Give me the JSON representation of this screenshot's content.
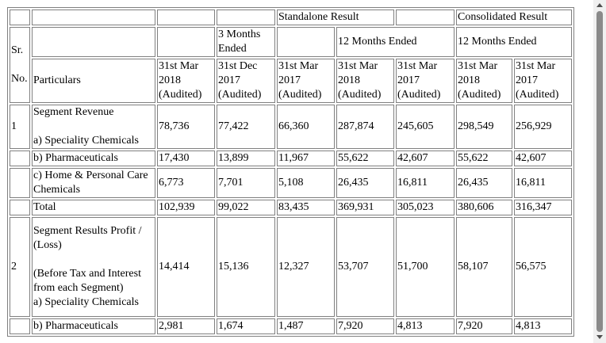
{
  "header": {
    "standalone_result": "Standalone Result",
    "consolidated_result": "Consolidated Result",
    "three_months_ended": "3 Months Ended",
    "twelve_months_ended": "12 Months Ended",
    "sr": "Sr.",
    "no": "No.",
    "particulars": "Particulars",
    "columns": [
      {
        "date": "31st Mar 2018",
        "status": "(Audited)"
      },
      {
        "date": "31st Dec 2017",
        "status": "(Audited)"
      },
      {
        "date": "31st Mar 2017",
        "status": "(Audited)"
      },
      {
        "date": "31st Mar 2018",
        "status": "(Audited)"
      },
      {
        "date": "31st Mar 2017",
        "status": "(Audited)"
      },
      {
        "date": "31st Mar 2018",
        "status": "(Audited)"
      },
      {
        "date": "31st Mar 2017",
        "status": "(Audited)"
      }
    ]
  },
  "rows": [
    {
      "sr": "1",
      "title": "Segment Revenue",
      "label": "a) Speciality Chemicals",
      "values": [
        "78,736",
        "77,422",
        "66,360",
        "287,874",
        "245,605",
        "298,549",
        "256,929"
      ]
    },
    {
      "sr": "",
      "label": "b) Pharmaceuticals",
      "values": [
        "17,430",
        "13,899",
        "11,967",
        "55,622",
        "42,607",
        "55,622",
        "42,607"
      ]
    },
    {
      "sr": "",
      "label": "c) Home & Personal Care Chemicals",
      "values": [
        "6,773",
        "7,701",
        "5,108",
        "26,435",
        "16,811",
        "26,435",
        "16,811"
      ]
    },
    {
      "sr": "",
      "label": "Total",
      "values": [
        "102,939",
        "99,022",
        "83,435",
        "369,931",
        "305,023",
        "380,606",
        "316,347"
      ]
    },
    {
      "sr": "2",
      "title": "Segment Results Profit / (Loss)",
      "note": "(Before Tax and Interest from each Segment)",
      "label": "a) Speciality Chemicals",
      "values": [
        "14,414",
        "15,136",
        "12,327",
        "53,707",
        "51,700",
        "58,107",
        "56,575"
      ]
    },
    {
      "sr": "",
      "label": "b) Pharmaceuticals",
      "values": [
        "2,981",
        "1,674",
        "1,487",
        "7,920",
        "4,813",
        "7,920",
        "4,813"
      ]
    }
  ]
}
